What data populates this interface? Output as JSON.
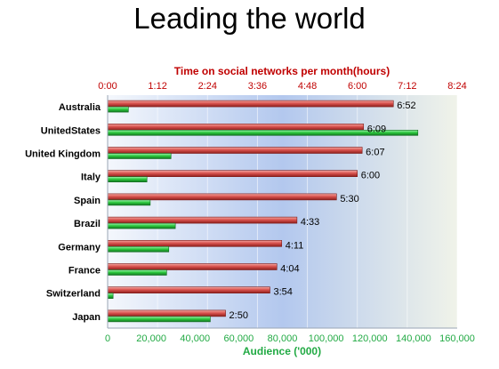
{
  "page": {
    "title": "Leading the world"
  },
  "chart_data": {
    "type": "bar",
    "orientation": "horizontal",
    "title": "Leading the world",
    "categories": [
      "Australia",
      "UnitedStates",
      "United Kingdom",
      "Italy",
      "Spain",
      "Brazil",
      "Germany",
      "France",
      "Switzerland",
      "Japan"
    ],
    "top_axis": {
      "label": "Time on social networks per month(hours)",
      "ticks": [
        "0:00",
        "1:12",
        "2:24",
        "3:36",
        "4:48",
        "6:00",
        "7:12",
        "8:24"
      ],
      "range_minutes": [
        0,
        504
      ]
    },
    "bottom_axis": {
      "label": "Audience ('000)",
      "ticks": [
        "0",
        "20,000",
        "40,000",
        "60,000",
        "80,000",
        "100,000",
        "120,000",
        "140,000",
        "160,000"
      ],
      "range": [
        0,
        160000
      ]
    },
    "series": [
      {
        "name": "Time on social networks per month(hours)",
        "color": "#d9534f",
        "values_minutes": [
          412,
          369,
          367,
          360,
          330,
          273,
          251,
          244,
          234,
          170
        ],
        "labels": [
          "6:52",
          "6:09",
          "6:07",
          "6:00",
          "5:30",
          "4:33",
          "4:11",
          "4:04",
          "3:54",
          "2:50"
        ]
      },
      {
        "name": "Audience ('000)",
        "color": "#2ecc40",
        "values": [
          9500,
          142000,
          29000,
          18000,
          19500,
          31000,
          28000,
          27000,
          2500,
          47000
        ]
      }
    ],
    "grid": true,
    "colors": {
      "red": "#c9403c",
      "green": "#23b04a",
      "plot_bg_left": "#aec7ee",
      "plot_bg_right": "#eef3e8"
    }
  }
}
